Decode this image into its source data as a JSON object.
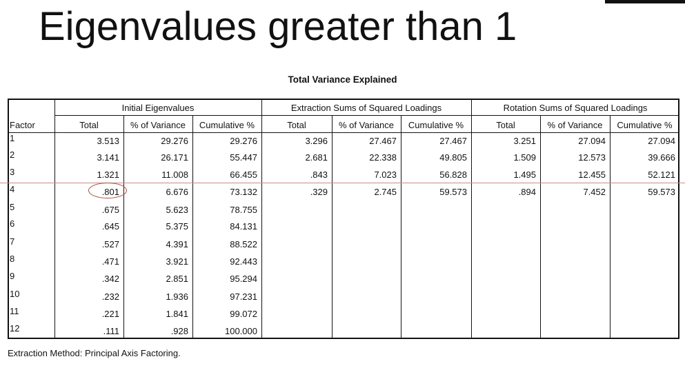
{
  "slide_title": "Eigenvalues greater than 1",
  "table": {
    "title": "Total Variance Explained",
    "groups": [
      "Initial Eigenvalues",
      "Extraction Sums of Squared Loadings",
      "Rotation Sums of Squared Loadings"
    ],
    "columns": [
      "Factor",
      "Total",
      "% of Variance",
      "Cumulative %",
      "Total",
      "% of Variance",
      "Cumulative %",
      "Total",
      "% of Variance",
      "Cumulative %"
    ],
    "rows": [
      [
        "1",
        "3.513",
        "29.276",
        "29.276",
        "3.296",
        "27.467",
        "27.467",
        "3.251",
        "27.094",
        "27.094"
      ],
      [
        "2",
        "3.141",
        "26.171",
        "55.447",
        "2.681",
        "22.338",
        "49.805",
        "1.509",
        "12.573",
        "39.666"
      ],
      [
        "3",
        "1.321",
        "11.008",
        "66.455",
        ".843",
        "7.023",
        "56.828",
        "1.495",
        "12.455",
        "52.121"
      ],
      [
        "4",
        ".801",
        "6.676",
        "73.132",
        ".329",
        "2.745",
        "59.573",
        ".894",
        "7.452",
        "59.573"
      ],
      [
        "5",
        ".675",
        "5.623",
        "78.755",
        "",
        "",
        "",
        "",
        "",
        ""
      ],
      [
        "6",
        ".645",
        "5.375",
        "84.131",
        "",
        "",
        "",
        "",
        "",
        ""
      ],
      [
        "7",
        ".527",
        "4.391",
        "88.522",
        "",
        "",
        "",
        "",
        "",
        ""
      ],
      [
        "8",
        ".471",
        "3.921",
        "92.443",
        "",
        "",
        "",
        "",
        "",
        ""
      ],
      [
        "9",
        ".342",
        "2.851",
        "95.294",
        "",
        "",
        "",
        "",
        "",
        ""
      ],
      [
        "10",
        ".232",
        "1.936",
        "97.231",
        "",
        "",
        "",
        "",
        "",
        ""
      ],
      [
        "11",
        ".221",
        "1.841",
        "99.072",
        "",
        "",
        "",
        "",
        "",
        ""
      ],
      [
        "12",
        ".111",
        ".928",
        "100.000",
        "",
        "",
        "",
        "",
        "",
        ""
      ]
    ],
    "footnote": "Extraction Method: Principal Axis Factoring."
  },
  "annotation_color": "#b04a3c",
  "guide_line_color": "#c98b8b"
}
